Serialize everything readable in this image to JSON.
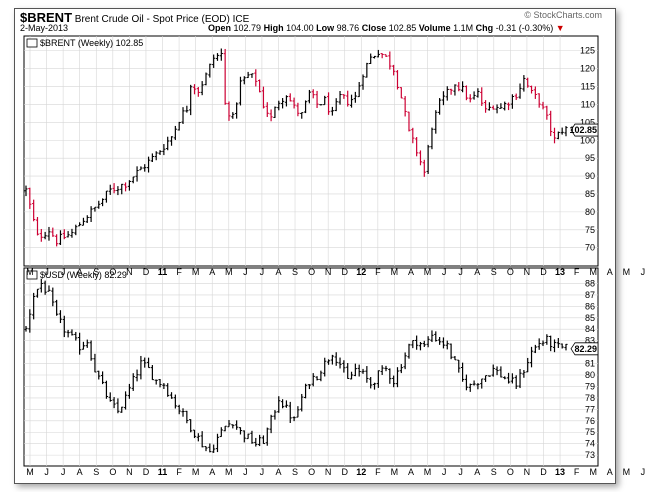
{
  "header": {
    "symbol": "$BRENT",
    "description": "Brent Crude Oil - Spot Price (EOD)",
    "exchange": "ICE",
    "watermark": "© StockCharts.com",
    "date": "2-May-2013",
    "open_label": "Open",
    "open": "102.79",
    "high_label": "High",
    "high": "104.00",
    "low_label": "Low",
    "low": "98.76",
    "close_label": "Close",
    "close": "102.85",
    "volume_label": "Volume",
    "volume": "1.1M",
    "chg_label": "Chg",
    "chg": "-0.31 (-0.30%)",
    "chg_arrow": "▼"
  },
  "colors": {
    "up": "#000000",
    "down": "#cc0033",
    "grid": "#d6d6d6",
    "frame": "#555555"
  },
  "x_axis": {
    "labels": [
      "M",
      "J",
      "J",
      "A",
      "S",
      "O",
      "N",
      "D",
      "11",
      "F",
      "M",
      "A",
      "M",
      "J",
      "J",
      "A",
      "S",
      "O",
      "N",
      "D",
      "12",
      "F",
      "M",
      "A",
      "M",
      "J",
      "J",
      "A",
      "S",
      "O",
      "N",
      "D",
      "13",
      "F",
      "M",
      "A",
      "M",
      "J"
    ],
    "bold": [
      "11",
      "12",
      "13"
    ]
  },
  "chart_data": [
    {
      "type": "bar",
      "style": "ohlc",
      "title": "$BRENT (Weekly) 102.85",
      "period": "Weekly",
      "ylim": [
        66,
        128
      ],
      "yticks": [
        70,
        75,
        80,
        85,
        90,
        95,
        100,
        105,
        110,
        115,
        120,
        125
      ],
      "last_value": "102.85",
      "grid": true,
      "anchors": [
        [
          0,
          86
        ],
        [
          3,
          73
        ],
        [
          6,
          75
        ],
        [
          8,
          72
        ],
        [
          12,
          74
        ],
        [
          15,
          78
        ],
        [
          18,
          81
        ],
        [
          22,
          86
        ],
        [
          26,
          88
        ],
        [
          30,
          92
        ],
        [
          34,
          96
        ],
        [
          38,
          101
        ],
        [
          40,
          106
        ],
        [
          42,
          109
        ],
        [
          43,
          116
        ],
        [
          45,
          114
        ],
        [
          47,
          118
        ],
        [
          49,
          123
        ],
        [
          51,
          124
        ],
        [
          52,
          110
        ],
        [
          54,
          106
        ],
        [
          56,
          116
        ],
        [
          58,
          118
        ],
        [
          60,
          117
        ],
        [
          62,
          110
        ],
        [
          64,
          106
        ],
        [
          66,
          111
        ],
        [
          68,
          113
        ],
        [
          70,
          109
        ],
        [
          72,
          107
        ],
        [
          74,
          113
        ],
        [
          76,
          110
        ],
        [
          78,
          111
        ],
        [
          80,
          107
        ],
        [
          82,
          112
        ],
        [
          84,
          111
        ],
        [
          86,
          112
        ],
        [
          88,
          119
        ],
        [
          90,
          123
        ],
        [
          92,
          125
        ],
        [
          94,
          123
        ],
        [
          96,
          120
        ],
        [
          98,
          112
        ],
        [
          100,
          102
        ],
        [
          102,
          97
        ],
        [
          104,
          91
        ],
        [
          106,
          104
        ],
        [
          108,
          110
        ],
        [
          110,
          113
        ],
        [
          112,
          116
        ],
        [
          114,
          114
        ],
        [
          116,
          111
        ],
        [
          118,
          113
        ],
        [
          120,
          108
        ],
        [
          122,
          110
        ],
        [
          124,
          109
        ],
        [
          126,
          111
        ],
        [
          128,
          113
        ],
        [
          130,
          117
        ],
        [
          132,
          113
        ],
        [
          134,
          111
        ],
        [
          136,
          106
        ],
        [
          138,
          100
        ],
        [
          140,
          103
        ]
      ]
    },
    {
      "type": "bar",
      "style": "ohlc",
      "title": "$USD (Weekly) 82.29",
      "period": "Weekly",
      "ylim": [
        72.4,
        89
      ],
      "yticks": [
        73,
        74,
        75,
        76,
        77,
        78,
        79,
        80,
        81,
        82,
        83,
        84,
        85,
        86,
        87,
        88
      ],
      "last_value": "82.29",
      "grid": true,
      "anchors": [
        [
          0,
          84
        ],
        [
          2,
          87
        ],
        [
          4,
          88
        ],
        [
          6,
          87
        ],
        [
          8,
          85
        ],
        [
          10,
          84
        ],
        [
          12,
          83.2
        ],
        [
          14,
          82.5
        ],
        [
          16,
          83
        ],
        [
          18,
          80.5
        ],
        [
          20,
          79
        ],
        [
          22,
          77.5
        ],
        [
          24,
          76.8
        ],
        [
          26,
          78
        ],
        [
          28,
          79.5
        ],
        [
          30,
          81
        ],
        [
          32,
          80.5
        ],
        [
          34,
          79.5
        ],
        [
          36,
          79.2
        ],
        [
          38,
          78
        ],
        [
          40,
          77
        ],
        [
          42,
          76
        ],
        [
          44,
          75
        ],
        [
          46,
          74
        ],
        [
          48,
          73.3
        ],
        [
          50,
          74.5
        ],
        [
          52,
          75.5
        ],
        [
          54,
          76
        ],
        [
          56,
          75
        ],
        [
          58,
          74.5
        ],
        [
          60,
          74
        ],
        [
          62,
          74.3
        ],
        [
          64,
          76
        ],
        [
          66,
          78
        ],
        [
          68,
          77
        ],
        [
          70,
          76
        ],
        [
          72,
          78
        ],
        [
          74,
          79.5
        ],
        [
          76,
          80
        ],
        [
          78,
          81
        ],
        [
          80,
          82
        ],
        [
          82,
          81
        ],
        [
          84,
          79.5
        ],
        [
          86,
          80.5
        ],
        [
          88,
          80
        ],
        [
          90,
          79.2
        ],
        [
          92,
          80
        ],
        [
          94,
          80.5
        ],
        [
          96,
          79.5
        ],
        [
          98,
          81
        ],
        [
          100,
          82.5
        ],
        [
          102,
          83
        ],
        [
          104,
          82.5
        ],
        [
          106,
          83.5
        ],
        [
          108,
          83
        ],
        [
          110,
          82.5
        ],
        [
          112,
          81
        ],
        [
          114,
          79.5
        ],
        [
          116,
          79
        ],
        [
          118,
          79.5
        ],
        [
          120,
          80
        ],
        [
          122,
          80.5
        ],
        [
          124,
          80
        ],
        [
          126,
          79.5
        ],
        [
          128,
          79.2
        ],
        [
          130,
          80.5
        ],
        [
          132,
          82
        ],
        [
          134,
          82.8
        ],
        [
          136,
          83
        ],
        [
          138,
          82.5
        ],
        [
          140,
          82.3
        ]
      ]
    }
  ]
}
